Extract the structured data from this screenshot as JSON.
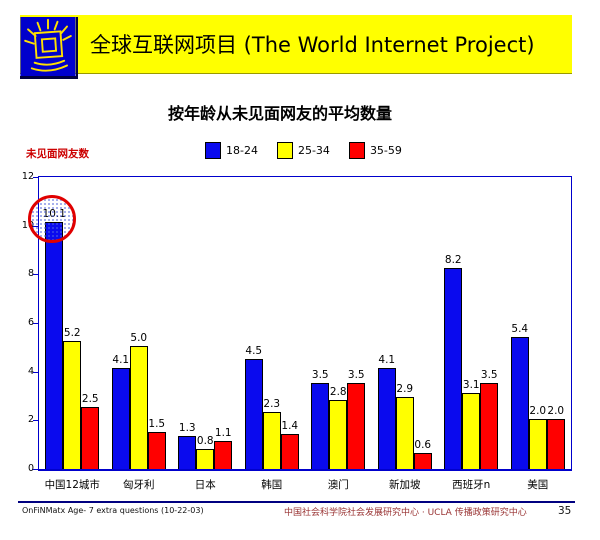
{
  "header": {
    "title": "全球互联网项目 (The World Internet Project)",
    "bg_color": "#ffff00",
    "logo_icon": "radiant-monitor-logo",
    "logo_bg": "#0000cc",
    "logo_stroke": "#ffe000"
  },
  "chart": {
    "title": "按年龄从未见面网友的平均数量",
    "y_axis_title": "未见面网友数",
    "y_axis_title_color": "#cc0000",
    "plot_border_color": "#0000cc",
    "legend": [
      {
        "label": "18-24",
        "color": "#0a0aee"
      },
      {
        "label": "25-34",
        "color": "#ffff00"
      },
      {
        "label": "35-59",
        "color": "#ff0000"
      }
    ],
    "annotation": {
      "shape": "ellipse",
      "color": "#e00000",
      "fill": "dotted-pattern",
      "highlighted_value": "10.1",
      "target": "中国12城市 18-24 bar"
    }
  },
  "chart_data": {
    "type": "bar",
    "title": "按年龄从未见面网友的平均数量",
    "xlabel": "",
    "ylabel": "未见面网友数",
    "categories": [
      "中国12城市",
      "匈牙利",
      "日本",
      "韩国",
      "澳门",
      "新加坡",
      "西班牙n",
      "美国"
    ],
    "series": [
      {
        "name": "18-24",
        "color": "#0a0aee",
        "values": [
          10.1,
          4.1,
          1.3,
          4.5,
          3.5,
          4.1,
          8.2,
          5.4
        ]
      },
      {
        "name": "25-34",
        "color": "#ffff00",
        "values": [
          5.2,
          5.0,
          0.8,
          2.3,
          2.8,
          2.9,
          3.1,
          2.0
        ]
      },
      {
        "name": "35-59",
        "color": "#ff0000",
        "values": [
          2.5,
          1.5,
          1.1,
          1.4,
          3.5,
          0.6,
          3.5,
          2.0
        ]
      }
    ],
    "ylim": [
      0,
      12
    ],
    "yticks": [
      0,
      2,
      4,
      6,
      8,
      10,
      12
    ],
    "grid": false,
    "legend_position": "top",
    "value_labels": "one-decimal"
  },
  "footer": {
    "left": "OnFiNMatx Age- 7 extra questions (10-22-03)",
    "center": "中国社会科学院社会发展研究中心 · UCLA 传播政策研究中心",
    "page_number": "35",
    "line_color": "#000080"
  }
}
